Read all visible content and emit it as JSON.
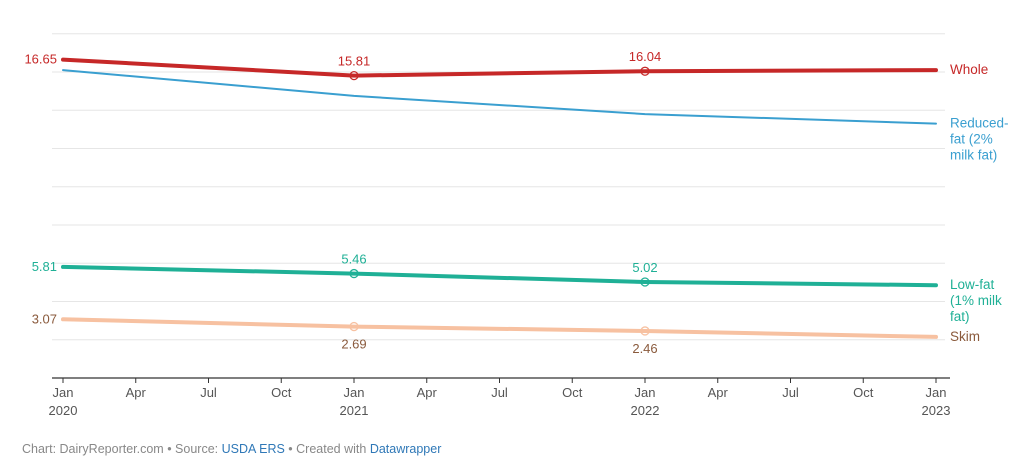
{
  "chart_data": {
    "type": "line",
    "title": "",
    "xlabel": "",
    "ylabel": "",
    "x_range": [
      "2020-01",
      "2023-01"
    ],
    "ylim": [
      0,
      18.3
    ],
    "grid": true,
    "x_ticks": [
      {
        "month": 0,
        "label": "Jan",
        "sub": "2020"
      },
      {
        "month": 3,
        "label": "Apr",
        "sub": ""
      },
      {
        "month": 6,
        "label": "Jul",
        "sub": ""
      },
      {
        "month": 9,
        "label": "Oct",
        "sub": ""
      },
      {
        "month": 12,
        "label": "Jan",
        "sub": "2021"
      },
      {
        "month": 15,
        "label": "Apr",
        "sub": ""
      },
      {
        "month": 18,
        "label": "Jul",
        "sub": ""
      },
      {
        "month": 21,
        "label": "Oct",
        "sub": ""
      },
      {
        "month": 24,
        "label": "Jan",
        "sub": "2022"
      },
      {
        "month": 27,
        "label": "Apr",
        "sub": ""
      },
      {
        "month": 30,
        "label": "Jul",
        "sub": ""
      },
      {
        "month": 33,
        "label": "Oct",
        "sub": ""
      },
      {
        "month": 36,
        "label": "Jan",
        "sub": "2023"
      }
    ],
    "series": [
      {
        "name": "Whole",
        "label_lines": [
          "Whole"
        ],
        "color": "#c62828",
        "emphasis": "thick",
        "points": [
          {
            "x": "2020-01",
            "y": 16.65,
            "label": "16.65"
          },
          {
            "x": "2021-01",
            "y": 15.81,
            "label": "15.81"
          },
          {
            "x": "2022-01",
            "y": 16.04,
            "label": "16.04"
          },
          {
            "x": "2023-01",
            "y": 16.1,
            "label": ""
          }
        ]
      },
      {
        "name": "Reduced-fat (2% milk fat)",
        "label_lines": [
          "Reduced-",
          "fat (2%",
          "milk fat)"
        ],
        "color": "#3a9fd0",
        "emphasis": "thin",
        "points": [
          {
            "x": "2020-01",
            "y": 16.1,
            "label": ""
          },
          {
            "x": "2021-01",
            "y": 14.75,
            "label": ""
          },
          {
            "x": "2022-01",
            "y": 13.8,
            "label": ""
          },
          {
            "x": "2023-01",
            "y": 13.3,
            "label": ""
          }
        ]
      },
      {
        "name": "Low-fat (1% milk fat)",
        "label_lines": [
          "Low-fat",
          "(1% milk",
          "fat)"
        ],
        "color": "#1fb096",
        "emphasis": "thick",
        "points": [
          {
            "x": "2020-01",
            "y": 5.81,
            "label": "5.81"
          },
          {
            "x": "2021-01",
            "y": 5.46,
            "label": "5.46"
          },
          {
            "x": "2022-01",
            "y": 5.02,
            "label": "5.02"
          },
          {
            "x": "2023-01",
            "y": 4.85,
            "label": ""
          }
        ]
      },
      {
        "name": "Skim",
        "label_lines": [
          "Skim"
        ],
        "color": "#f7c1a1",
        "text_color": "#8a5a3c",
        "emphasis": "thick",
        "points": [
          {
            "x": "2020-01",
            "y": 3.07,
            "label": "3.07"
          },
          {
            "x": "2021-01",
            "y": 2.69,
            "label": "2.69"
          },
          {
            "x": "2022-01",
            "y": 2.46,
            "label": "2.46"
          },
          {
            "x": "2023-01",
            "y": 2.15,
            "label": ""
          }
        ]
      }
    ]
  },
  "footer": {
    "chart_prefix": "Chart: DairyReporter.com",
    "sep1": " • ",
    "source_prefix": "Source: ",
    "source_link": "USDA ERS",
    "sep2": " • ",
    "created_prefix": "Created with ",
    "created_link": "Datawrapper"
  }
}
